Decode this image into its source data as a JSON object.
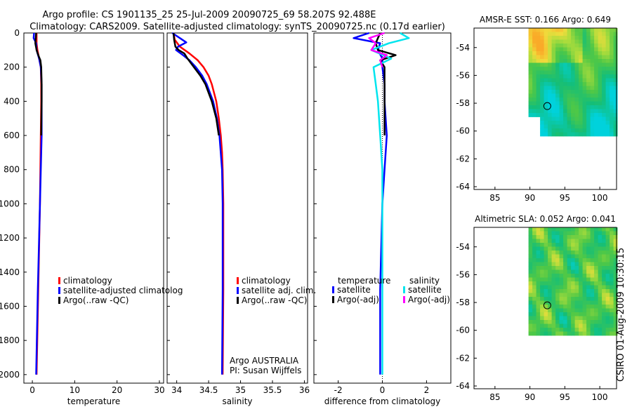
{
  "figure": {
    "title_line1": "Argo profile: CS 1901135_25 25-Jul-2009 20090725_69 58.207S 92.488E",
    "title_line2": "Climatology: CARS2009. Satellite-adjusted climatology: synTS_20090725.nc (0.17d earlier)",
    "stamp": "CSIRO 01-Aug-2009 10:30:15",
    "argo_note_line1": "Argo AUSTRALIA",
    "argo_note_line2": "PI: Susan Wijffels"
  },
  "colors": {
    "climatology": "#ff0000",
    "satellite": "#0000ff",
    "argo": "#000000",
    "sal_satellite": "#00e5ee",
    "sal_argo": "#ff00ff"
  },
  "chart_data": [
    {
      "id": "temperature",
      "type": "line",
      "xlabel": "temperature",
      "ylabel": "",
      "xlim": [
        -2,
        31
      ],
      "ylim": [
        2050,
        0
      ],
      "xticks": [
        0,
        10,
        20,
        30
      ],
      "xtick_labels": [
        "0",
        "10",
        "20",
        "30"
      ],
      "yticks": [
        0,
        200,
        400,
        600,
        800,
        1000,
        1200,
        1400,
        1600,
        1800,
        2000
      ],
      "ytick_labels": [
        "0",
        "200",
        "400",
        "600",
        "800",
        "1000",
        "1200",
        "1400",
        "1600",
        "1800",
        "2000"
      ],
      "legend": [
        "climatology",
        "satellite-adjusted climatolog",
        "Argo(..raw -QC)"
      ],
      "series": [
        {
          "name": "climatology",
          "color_key": "climatology",
          "depth": [
            0,
            30,
            60,
            100,
            150,
            200,
            300,
            400,
            600,
            800,
            1000,
            1500,
            2000
          ],
          "values": [
            1.0,
            1.0,
            1.0,
            1.2,
            1.6,
            2.0,
            2.1,
            2.1,
            2.0,
            1.9,
            1.8,
            1.4,
            1.0
          ]
        },
        {
          "name": "satellite",
          "color_key": "satellite",
          "depth": [
            0,
            30,
            60,
            100,
            150,
            200,
            300,
            400,
            600,
            800,
            1000,
            1500,
            2000
          ],
          "values": [
            0.4,
            0.3,
            0.9,
            1.0,
            1.6,
            2.0,
            2.2,
            2.2,
            2.2,
            2.0,
            1.8,
            1.3,
            0.9
          ]
        },
        {
          "name": "Argo(..raw -QC)",
          "color_key": "argo",
          "depth": [
            0,
            30,
            60,
            100,
            130,
            160,
            200,
            300,
            400,
            600
          ],
          "values": [
            0.9,
            0.8,
            0.7,
            1.0,
            1.4,
            1.9,
            2.1,
            2.2,
            2.2,
            2.1
          ]
        }
      ]
    },
    {
      "id": "salinity",
      "type": "line",
      "xlabel": "salinity",
      "ylabel": "",
      "xlim": [
        33.85,
        36.05
      ],
      "ylim": [
        2050,
        0
      ],
      "xticks": [
        34,
        34.5,
        35,
        35.5,
        36
      ],
      "xtick_labels": [
        "34",
        "34.5",
        "35",
        "35.5",
        "36"
      ],
      "legend": [
        "climatology",
        "satellite adj. clim.",
        "Argo(..raw -QC)"
      ],
      "series": [
        {
          "name": "climatology",
          "color_key": "climatology",
          "depth": [
            0,
            40,
            80,
            120,
            160,
            200,
            250,
            300,
            400,
            500,
            600,
            700,
            800,
            1000,
            1500,
            2000
          ],
          "values": [
            33.95,
            33.97,
            34.05,
            34.2,
            34.33,
            34.42,
            34.5,
            34.55,
            34.62,
            34.66,
            34.69,
            34.71,
            34.72,
            34.73,
            34.73,
            34.72
          ]
        },
        {
          "name": "satellite",
          "color_key": "satellite",
          "depth": [
            0,
            30,
            55,
            80,
            100,
            130,
            160,
            200,
            250,
            300,
            400,
            500,
            600,
            800,
            1000,
            1500,
            2000
          ],
          "values": [
            33.93,
            34.05,
            34.15,
            34.02,
            33.99,
            34.1,
            34.2,
            34.3,
            34.4,
            34.47,
            34.57,
            34.63,
            34.67,
            34.71,
            34.72,
            34.72,
            34.71
          ]
        },
        {
          "name": "Argo(..raw -QC)",
          "color_key": "argo",
          "depth": [
            0,
            40,
            80,
            100,
            120,
            150,
            200,
            250,
            300,
            400,
            500,
            600
          ],
          "values": [
            33.95,
            33.96,
            33.98,
            34.03,
            34.12,
            34.17,
            34.27,
            34.37,
            34.45,
            34.55,
            34.62,
            34.66
          ]
        }
      ]
    },
    {
      "id": "difference",
      "type": "line",
      "xlabel": "difference from climatology",
      "ylabel": "",
      "xlim": [
        -3.1,
        3.1
      ],
      "ylim": [
        2050,
        0
      ],
      "xticks": [
        -2,
        0,
        2
      ],
      "xtick_labels": [
        "-2",
        "0",
        "2"
      ],
      "legend_header_left": "temperature",
      "legend_header_right": "salinity",
      "legend": [
        "satellite",
        "Argo(-adj)",
        "satellite",
        "Argo(-adj)"
      ],
      "series": [
        {
          "name": "temperature satellite",
          "color_key": "satellite",
          "depth": [
            0,
            30,
            60,
            100,
            150,
            200,
            300,
            400,
            600,
            800,
            1000,
            1500,
            2000
          ],
          "values": [
            -0.6,
            -1.3,
            -0.1,
            -0.2,
            0.0,
            0.0,
            0.1,
            0.1,
            0.2,
            0.1,
            0.0,
            -0.1,
            -0.1
          ]
        },
        {
          "name": "temperature Argo(-adj)",
          "color_key": "argo",
          "depth": [
            0,
            30,
            60,
            100,
            130,
            160,
            200,
            300,
            400,
            600
          ],
          "values": [
            -0.1,
            -0.2,
            -0.3,
            -0.2,
            0.6,
            -0.1,
            0.1,
            0.1,
            0.1,
            0.1
          ]
        },
        {
          "name": "salinity satellite",
          "color_key": "sal_satellite",
          "depth": [
            0,
            30,
            60,
            100,
            150,
            200,
            300,
            400,
            600,
            800,
            1000,
            1500,
            2000
          ],
          "values": [
            0.8,
            1.2,
            0.3,
            -0.5,
            0.4,
            -0.4,
            -0.3,
            -0.2,
            -0.1,
            0.0,
            0.0,
            0.0,
            0.0
          ]
        },
        {
          "name": "salinity Argo(-adj)",
          "color_key": "sal_argo",
          "depth": [
            0,
            30,
            60,
            100,
            130,
            160,
            200
          ],
          "values": [
            0.1,
            -0.6,
            -0.3,
            -0.5,
            0.2,
            -0.1,
            0.0
          ]
        }
      ]
    },
    {
      "id": "sst_map",
      "type": "heatmap",
      "title": "AMSR-E SST: 0.166 Argo: 0.649",
      "xlim": [
        82,
        102.4
      ],
      "ylim": [
        -64.2,
        -52.6
      ],
      "xticks": [
        85,
        90,
        95,
        100
      ],
      "xtick_labels": [
        "85",
        "90",
        "95",
        "100"
      ],
      "yticks": [
        -54,
        -56,
        -58,
        -60,
        -62,
        -64
      ],
      "ytick_labels": [
        "-54",
        "-56",
        "-58",
        "-60",
        "-62",
        "-64"
      ],
      "data_extent_lon": [
        89.8,
        102.4
      ],
      "data_extent_lat": [
        -60.2,
        -52.6
      ],
      "argo_position": [
        92.488,
        -58.207
      ]
    },
    {
      "id": "sla_map",
      "type": "heatmap",
      "title": "Altimetric SLA: 0.052 Argo: 0.041",
      "xlim": [
        82,
        102.4
      ],
      "ylim": [
        -64.2,
        -52.6
      ],
      "xticks": [
        85,
        90,
        95,
        100
      ],
      "xtick_labels": [
        "85",
        "90",
        "95",
        "100"
      ],
      "yticks": [
        -54,
        -56,
        -58,
        -60,
        -62,
        -64
      ],
      "ytick_labels": [
        "-54",
        "-56",
        "-58",
        "-60",
        "-62",
        "-64"
      ],
      "data_extent_lon": [
        89.8,
        102.4
      ],
      "data_extent_lat": [
        -60.2,
        -52.6
      ],
      "argo_position": [
        92.488,
        -58.207
      ]
    }
  ]
}
